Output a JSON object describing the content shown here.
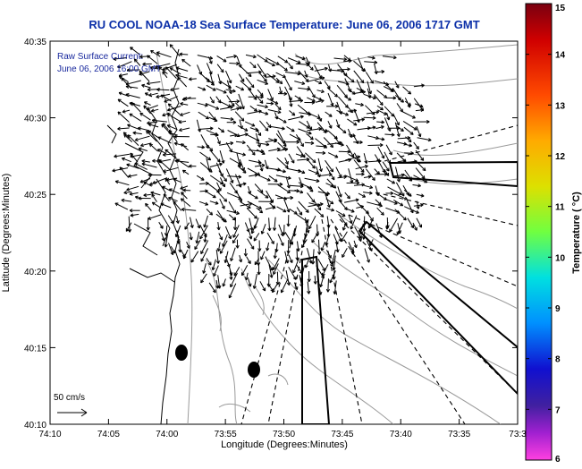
{
  "title": "RU COOL  NOAA-18  Sea Surface Temperature:  June 06, 2006 1717 GMT",
  "overlay": {
    "line1": "Raw Surface Current:",
    "line2": "June 06, 2006 16:00 GMT"
  },
  "scale_label": "50 cm/s",
  "axes": {
    "xlabel": "Longitude (Degrees:Minutes)",
    "ylabel": "Latitude (Degrees:Minutes)",
    "x_ticks": [
      "74:10",
      "74:05",
      "74:00",
      "73:55",
      "73:50",
      "73:45",
      "73:40",
      "73:35",
      "73:3"
    ],
    "y_ticks": [
      "40:35",
      "40:30",
      "40:25",
      "40:20",
      "40:15",
      "40:10"
    ]
  },
  "colorbar": {
    "label": "Temperature ( °C)",
    "ticks": [
      "15",
      "14",
      "13",
      "12",
      "11",
      "10",
      "9",
      "8",
      "7",
      "6"
    ]
  },
  "colors": {
    "title": "#0b2fa8",
    "overlay_text": "#1a2a9e",
    "arrows": "#000000",
    "coast": "#000000",
    "bathymetry": "#9a9a9a"
  }
}
